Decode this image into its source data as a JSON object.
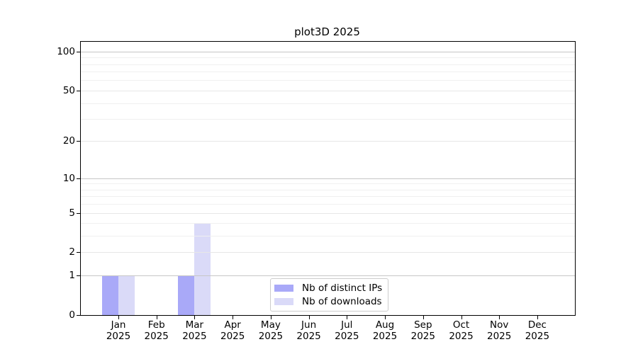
{
  "title": "plot3D 2025",
  "colors": {
    "distinct_ips": "#a9a9f8",
    "downloads": "#dadaf8",
    "axis": "#000000",
    "grid_decade": "#c6c6c6",
    "grid_tick": "#e7e7e7",
    "grid_minor": "#f0f0f0",
    "legend_border": "#cccccc"
  },
  "y_axis": {
    "ticks": [
      {
        "value": 0,
        "label": "0"
      },
      {
        "value": 1,
        "label": "1"
      },
      {
        "value": 2,
        "label": "2"
      },
      {
        "value": 5,
        "label": "5"
      },
      {
        "value": 10,
        "label": "10"
      },
      {
        "value": 20,
        "label": "20"
      },
      {
        "value": 50,
        "label": "50"
      },
      {
        "value": 100,
        "label": "100"
      }
    ],
    "decade_gridlines": [
      1,
      10,
      100
    ],
    "minor_gridlines": [
      3,
      4,
      6,
      7,
      8,
      9,
      30,
      40,
      60,
      70,
      80,
      90
    ]
  },
  "x_axis": {
    "months": [
      "Jan",
      "Feb",
      "Mar",
      "Apr",
      "May",
      "Jun",
      "Jul",
      "Aug",
      "Sep",
      "Oct",
      "Nov",
      "Dec"
    ],
    "year": "2025"
  },
  "legend": {
    "items": [
      {
        "label": "Nb of distinct IPs",
        "color": "#a9a9f8"
      },
      {
        "label": "Nb of downloads",
        "color": "#dadaf8"
      }
    ]
  },
  "chart_data": {
    "type": "bar",
    "title": "plot3D 2025",
    "categories": [
      "Jan 2025",
      "Feb 2025",
      "Mar 2025",
      "Apr 2025",
      "May 2025",
      "Jun 2025",
      "Jul 2025",
      "Aug 2025",
      "Sep 2025",
      "Oct 2025",
      "Nov 2025",
      "Dec 2025"
    ],
    "series": [
      {
        "name": "Nb of distinct IPs",
        "color": "#a9a9f8",
        "values": [
          1,
          0,
          1,
          0,
          0,
          0,
          0,
          0,
          0,
          0,
          0,
          0
        ]
      },
      {
        "name": "Nb of downloads",
        "color": "#dadaf8",
        "values": [
          1,
          0,
          4,
          0,
          0,
          0,
          0,
          0,
          0,
          0,
          0,
          0
        ]
      }
    ],
    "xlabel": "",
    "ylabel": "",
    "yscale": "log1p",
    "yticks": [
      0,
      1,
      2,
      5,
      10,
      20,
      50,
      100
    ],
    "ylim": [
      0,
      118
    ],
    "grid": true,
    "legend_position": "lower center inside"
  }
}
